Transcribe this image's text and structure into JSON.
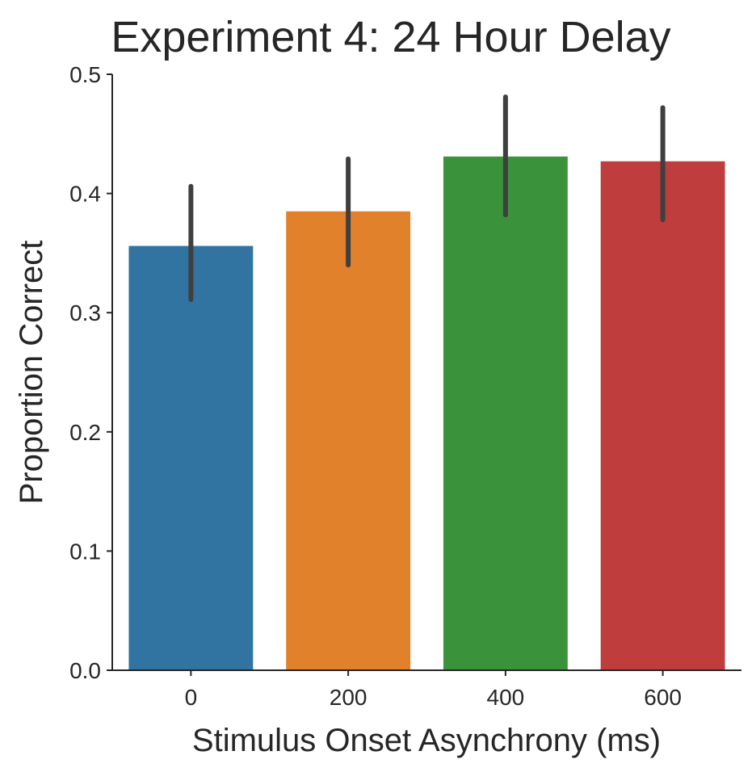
{
  "chart_data": {
    "type": "bar",
    "title": "Experiment 4: 24 Hour Delay",
    "xlabel": "Stimulus Onset Asynchrony (ms)",
    "ylabel": "Proportion Correct",
    "categories": [
      "0",
      "200",
      "400",
      "600"
    ],
    "values": [
      0.356,
      0.385,
      0.431,
      0.427
    ],
    "error_low": [
      0.311,
      0.34,
      0.382,
      0.378
    ],
    "error_high": [
      0.406,
      0.429,
      0.481,
      0.472
    ],
    "colors": [
      "#3274a1",
      "#e1812c",
      "#3a923a",
      "#c03d3e"
    ],
    "error_bar_color": "#3f3f3f",
    "ylim": [
      0.0,
      0.5
    ],
    "yticks": [
      0.0,
      0.1,
      0.2,
      0.3,
      0.4,
      0.5
    ],
    "ytick_labels": [
      "0.0",
      "0.1",
      "0.2",
      "0.3",
      "0.4",
      "0.5"
    ],
    "grid": false,
    "legend": null
  }
}
